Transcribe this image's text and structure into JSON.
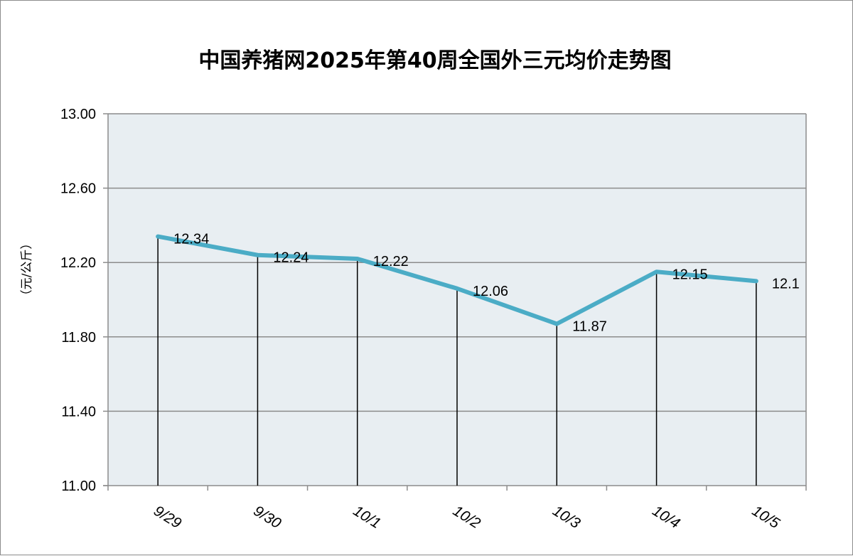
{
  "chart_data": {
    "type": "line",
    "title": "中国养猪网2025年第40周全国外三元均价走势图",
    "ylabel": "（元/公斤）",
    "xlabel": "",
    "ylim": [
      11.0,
      13.0
    ],
    "yticks": [
      11.0,
      11.4,
      11.8,
      12.2,
      12.6,
      13.0
    ],
    "ytick_labels": [
      "11.00",
      "11.40",
      "11.80",
      "12.20",
      "12.60",
      "13.00"
    ],
    "categories": [
      "9/29",
      "9/30",
      "10/1",
      "10/2",
      "10/3",
      "10/4",
      "10/5"
    ],
    "values": [
      12.34,
      12.24,
      12.22,
      12.06,
      11.87,
      12.15,
      12.1
    ],
    "value_labels": [
      "12.34",
      "12.24",
      "12.22",
      "12.06",
      "11.87",
      "12.15",
      "12.1"
    ],
    "grid": true,
    "drop_lines": true,
    "colors": {
      "line": "#4bacc6",
      "plot_bg": "#e8eef2",
      "grid": "#8c8c8c",
      "drop_line": "#000000"
    }
  }
}
